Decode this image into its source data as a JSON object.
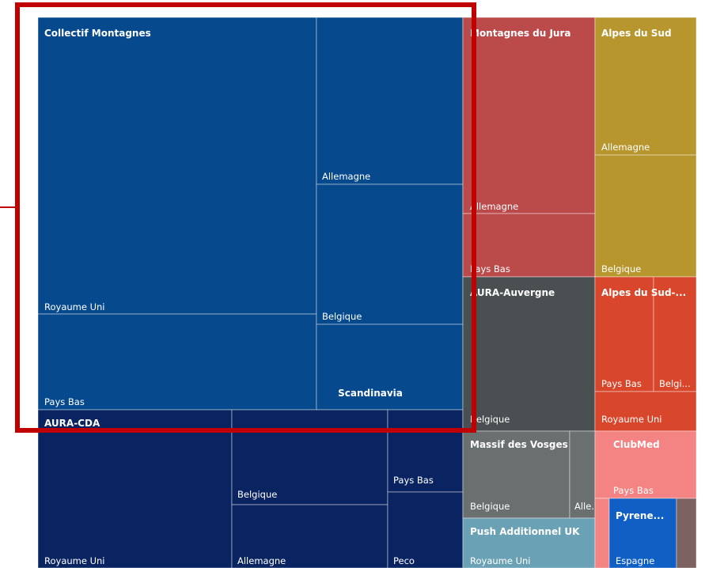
{
  "groups": [
    {
      "title": "Collectif Montagnes",
      "cells": [
        "Royaume Uni",
        "Pays Bas",
        "Allemagne",
        "Belgique",
        "Scandinavia"
      ]
    },
    {
      "title": "AURA-CDA",
      "cells": [
        "Royaume Uni",
        "Belgique",
        "Allemagne",
        "Pays Bas",
        "Peco"
      ]
    },
    {
      "title": "Montagnes du Jura",
      "cells": [
        "Allemagne",
        "Pays Bas"
      ]
    },
    {
      "title": "Alpes du Sud",
      "cells": [
        "Allemagne",
        "Belgique"
      ]
    },
    {
      "title": "AURA-Auvergne",
      "cells": [
        "Belgique"
      ]
    },
    {
      "title": "Alpes du Sud-...",
      "cells": [
        "Pays Bas",
        "Belgi...",
        "Royaume Uni"
      ]
    },
    {
      "title": "Massif des Vosges",
      "cells": [
        "Belgique",
        "Alle..."
      ]
    },
    {
      "title": "ClubMed",
      "cells": [
        "Pays Bas"
      ]
    },
    {
      "title": "Push Additionnel UK",
      "cells": [
        "Royaume Uni"
      ]
    },
    {
      "title": "Pyrene...",
      "cells": [
        "Espagne"
      ]
    }
  ]
}
